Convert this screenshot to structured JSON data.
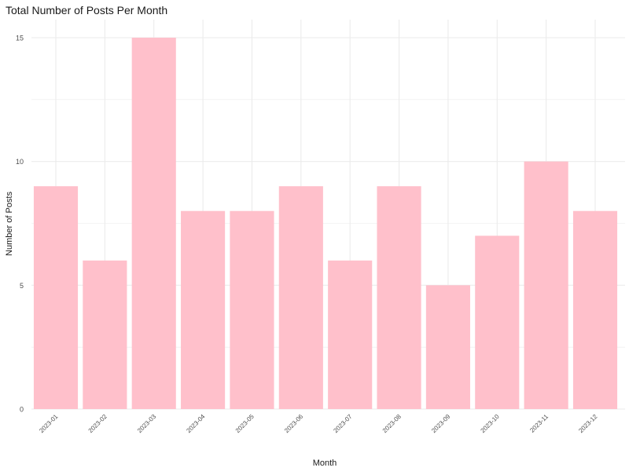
{
  "chart_data": {
    "type": "bar",
    "title": "Total Number of Posts Per Month",
    "xlabel": "Month",
    "ylabel": "Number of Posts",
    "categories": [
      "2023-01",
      "2023-02",
      "2023-03",
      "2023-04",
      "2023-05",
      "2023-06",
      "2023-07",
      "2023-08",
      "2023-09",
      "2023-10",
      "2023-11",
      "2023-12"
    ],
    "values": [
      9,
      6,
      15,
      8,
      8,
      9,
      6,
      9,
      5,
      7,
      10,
      8
    ],
    "ylim": [
      0,
      15
    ],
    "yticks": [
      0,
      5,
      10,
      15
    ],
    "grid": true,
    "legend": "none",
    "bar_color": "#FFC0CB",
    "grid_color": "#EBEBEB",
    "text_color": "#4D4D4D"
  }
}
